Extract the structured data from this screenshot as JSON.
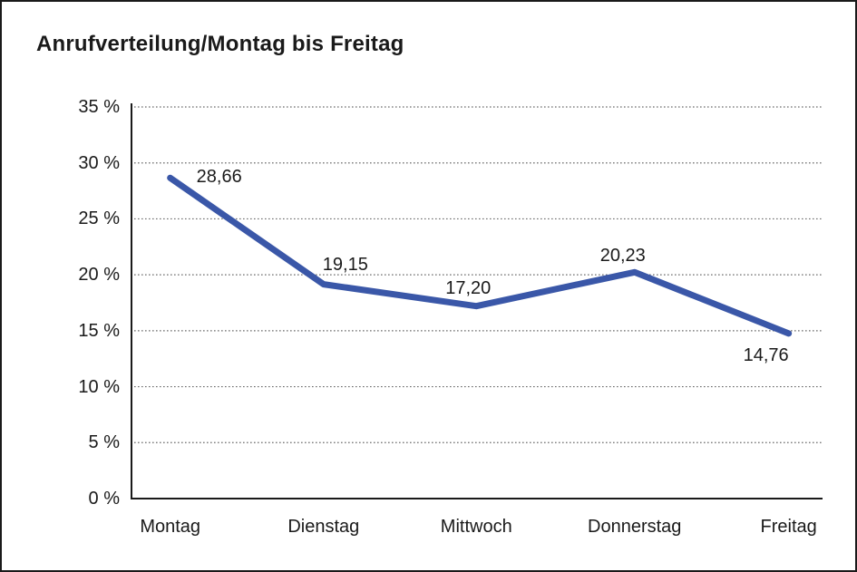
{
  "window": {
    "title": "Anrufverteilung/Montag bis Freitag"
  },
  "chart_data": {
    "type": "line",
    "title": "Anrufverteilung/Montag bis Freitag",
    "categories": [
      "Montag",
      "Dienstag",
      "Mittwoch",
      "Donnerstag",
      "Freitag"
    ],
    "values": [
      28.66,
      19.15,
      17.2,
      20.23,
      14.76
    ],
    "point_labels": [
      "28,66",
      "19,15",
      "17,20",
      "20,23",
      "14,76"
    ],
    "ytick_labels": [
      "35 %",
      "30 %",
      "25 %",
      "20 %",
      "15 %",
      "10 %",
      "5 %",
      "0 %"
    ],
    "ylabel": "",
    "xlabel": "",
    "ylim": [
      0,
      35
    ],
    "ytick_step": 5,
    "grid": "horizontal-dotted",
    "legend": "none",
    "decimal_separator": ","
  },
  "colors": {
    "line": "#3a57a8",
    "grid": "#6b6b6b",
    "axis": "#1a1a1a",
    "text": "#1a1a1a",
    "background": "#ffffff",
    "border": "#1a1a1a"
  }
}
